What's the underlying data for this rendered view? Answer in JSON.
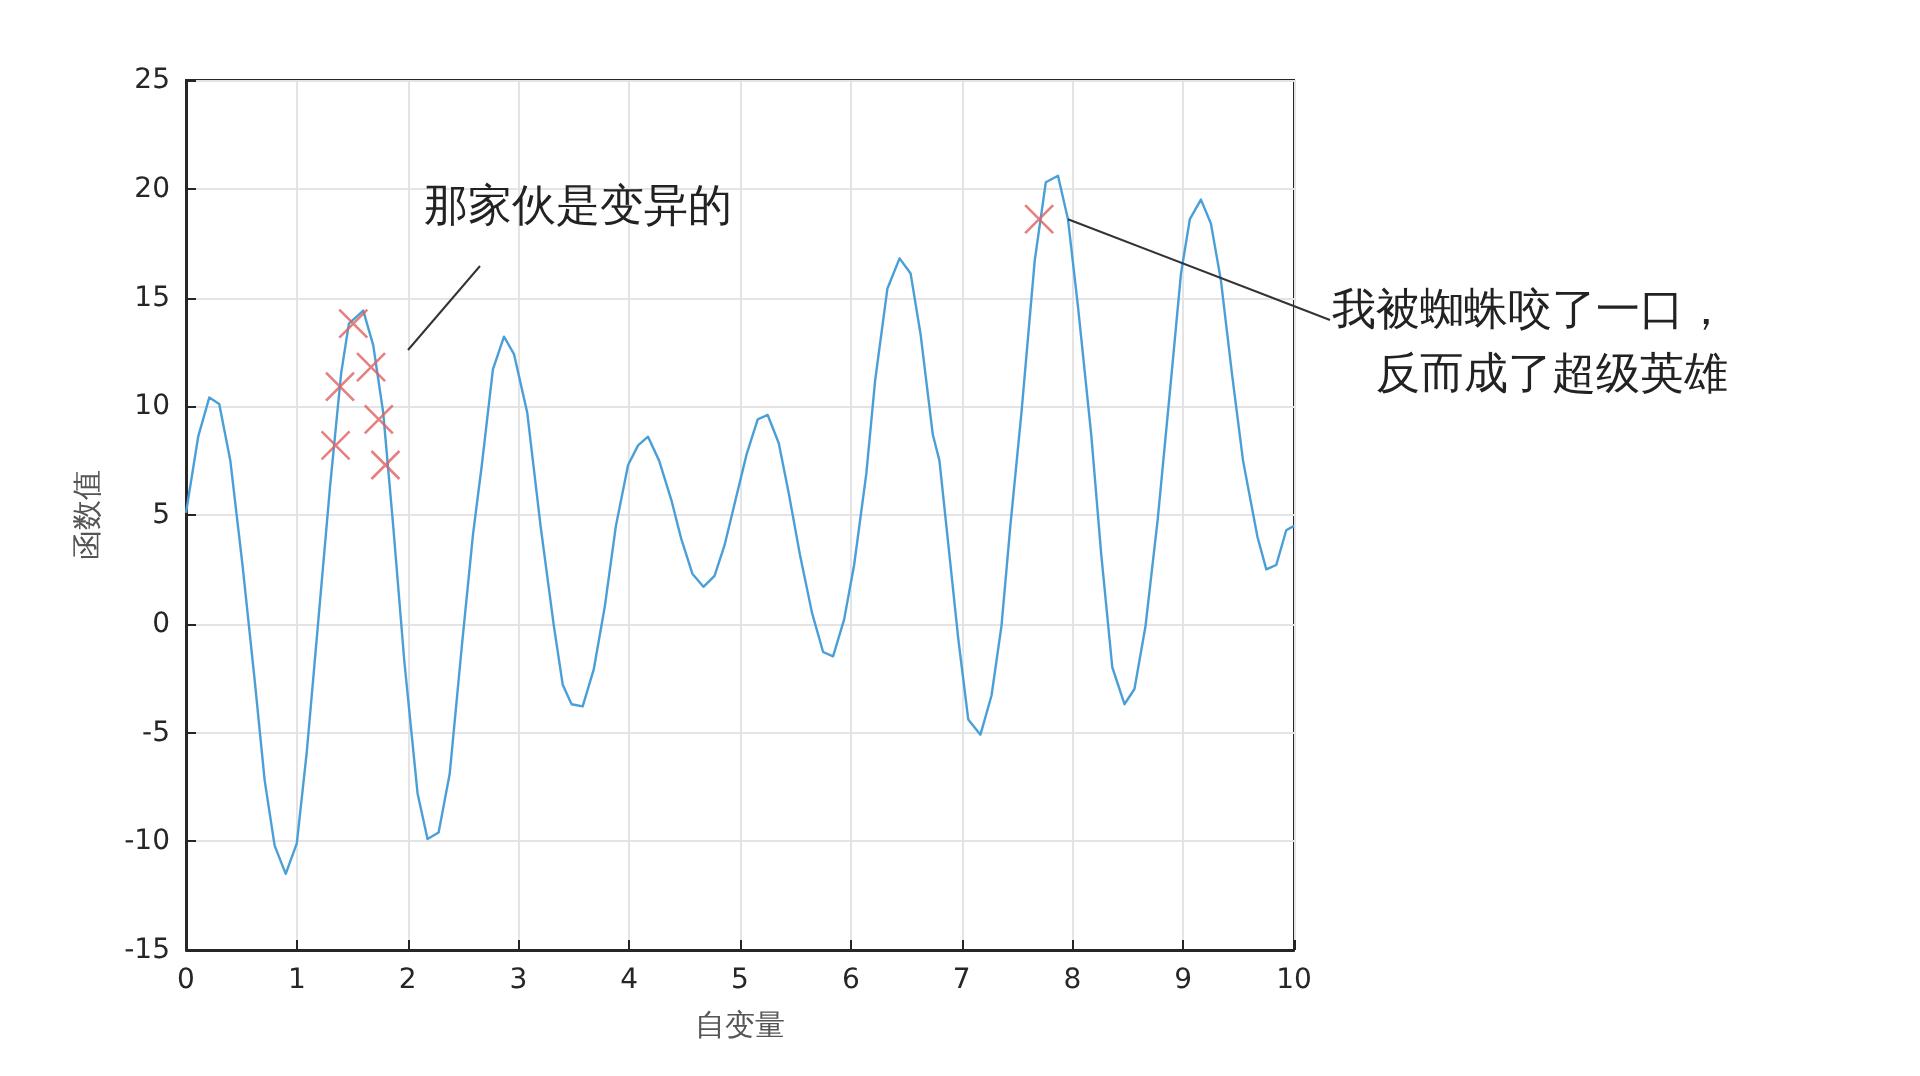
{
  "chart_data": {
    "type": "line",
    "xlabel": "自变量",
    "ylabel": "函数值",
    "xlim": [
      0,
      10
    ],
    "ylim": [
      -15,
      25
    ],
    "xticks": [
      0,
      1,
      2,
      3,
      4,
      5,
      6,
      7,
      8,
      9,
      10
    ],
    "yticks": [
      -15,
      -10,
      -5,
      0,
      5,
      10,
      15,
      20,
      25
    ],
    "grid": true,
    "series": [
      {
        "color": "#4a9fd8",
        "marker": "none",
        "line_style": "solid",
        "x": [
          0,
          0.11,
          0.21,
          0.3,
          0.4,
          0.51,
          0.62,
          0.71,
          0.8,
          0.9,
          1.0,
          1.09,
          1.19,
          1.3,
          1.4,
          1.47,
          1.6,
          1.69,
          1.78,
          1.87,
          1.97,
          2.09,
          2.18,
          2.28,
          2.38,
          2.49,
          2.59,
          2.67,
          2.77,
          2.87,
          2.96,
          3.08,
          3.2,
          3.32,
          3.4,
          3.48,
          3.58,
          3.68,
          3.78,
          3.88,
          3.99,
          4.08,
          4.17,
          4.27,
          4.38,
          4.47,
          4.57,
          4.67,
          4.77,
          4.86,
          4.96,
          5.06,
          5.16,
          5.25,
          5.35,
          5.44,
          5.54,
          5.65,
          5.75,
          5.84,
          5.94,
          6.03,
          6.14,
          6.22,
          6.33,
          6.44,
          6.54,
          6.63,
          6.74,
          6.8,
          6.9,
          6.97,
          7.06,
          7.17,
          7.27,
          7.36,
          7.44,
          7.54,
          7.66,
          7.76,
          7.87,
          7.96,
          8.05,
          8.17,
          8.26,
          8.36,
          8.47,
          8.56,
          8.66,
          8.77,
          8.89,
          8.98,
          9.06,
          9.16,
          9.25,
          9.34,
          9.44,
          9.54,
          9.67,
          9.75,
          9.84,
          9.93,
          10
        ],
        "values": [
          5.1,
          8.6,
          10.4,
          10.1,
          7.5,
          2.7,
          -2.6,
          -7.2,
          -10.2,
          -11.5,
          -10.1,
          -5.9,
          -0.1,
          6.3,
          11.5,
          13.8,
          14.4,
          12.8,
          9.7,
          4.5,
          -1.7,
          -7.8,
          -9.9,
          -9.6,
          -6.9,
          -1,
          4.1,
          7.3,
          11.7,
          13.2,
          12.4,
          9.7,
          4.5,
          -0.1,
          -2.8,
          -3.7,
          -3.8,
          -2.1,
          0.8,
          4.5,
          7.3,
          8.2,
          8.6,
          7.5,
          5.7,
          3.9,
          2.3,
          1.7,
          2.2,
          3.6,
          5.7,
          7.8,
          9.4,
          9.6,
          8.3,
          6.0,
          3.2,
          0.5,
          -1.3,
          -1.5,
          0.2,
          2.7,
          6.9,
          11.2,
          15.4,
          16.8,
          16.1,
          13.3,
          8.7,
          7.5,
          2.7,
          -0.7,
          -4.4,
          -5.1,
          -3.3,
          -0.1,
          4.5,
          9.7,
          16.7,
          20.3,
          20.6,
          18.6,
          14.6,
          8.7,
          3.2,
          -2,
          -3.7,
          -3.0,
          -0.1,
          4.8,
          11.2,
          16.1,
          18.6,
          19.5,
          18.4,
          15.8,
          11.5,
          7.5,
          4.0,
          2.5,
          2.7,
          4.3,
          4.5
        ]
      },
      {
        "type": "scatter",
        "color": "#e06060",
        "marker": "cross",
        "x": [
          1.51,
          1.67,
          1.39,
          1.74,
          1.35,
          1.8,
          7.7
        ],
        "values": [
          13.8,
          11.8,
          10.9,
          9.4,
          8.2,
          7.3,
          18.6
        ]
      }
    ],
    "annotations": [
      "那家伙是变异的",
      {
        "text": "我被蜘蛛咬了一口，反而成了超级英雄",
        "x": 7.96,
        "y": 18.6
      }
    ]
  }
}
